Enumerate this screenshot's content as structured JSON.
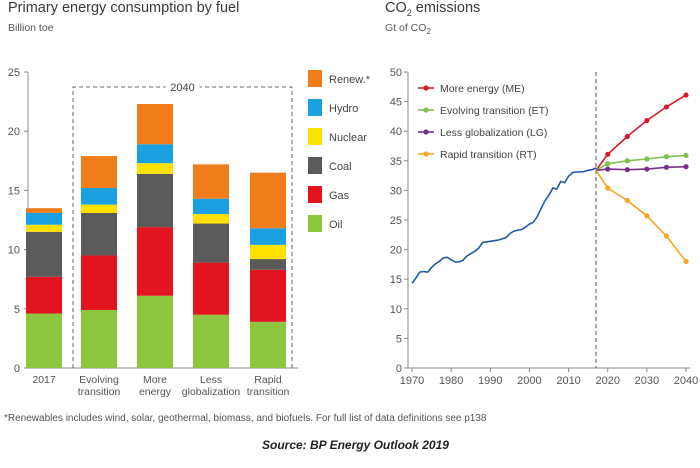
{
  "left_title": "Primary energy consumption by fuel",
  "left_unit": "Billion toe",
  "right_title_main": "CO",
  "right_title_sub": "2",
  "right_title_rest": " emissions",
  "right_unit_main": "Gt of CO",
  "right_unit_sub": "2",
  "footnote": "*Renewables includes wind, solar, geothermal, biomass, and biofuels. For full list of data definitions see p138",
  "source": "Source: BP Energy Outlook 2019",
  "chart_data": [
    {
      "type": "bar",
      "stacked": true,
      "categories": [
        [
          "2017"
        ],
        [
          "Evolving",
          "transition"
        ],
        [
          "More",
          "energy"
        ],
        [
          "Less",
          "globalization"
        ],
        [
          "Rapid",
          "transition"
        ]
      ],
      "bracket_label": "2040",
      "ylim": [
        0,
        25
      ],
      "yticks": [
        0,
        5,
        10,
        15,
        20,
        25
      ],
      "grid": false,
      "legend_position": "right",
      "series": [
        {
          "name": "Oil",
          "color": "#8cc63f",
          "values": [
            4.6,
            4.9,
            6.1,
            4.5,
            3.9
          ]
        },
        {
          "name": "Gas",
          "color": "#e2141d",
          "values": [
            3.1,
            4.6,
            5.8,
            4.4,
            4.4
          ]
        },
        {
          "name": "Coal",
          "color": "#5a5a5a",
          "values": [
            3.8,
            3.6,
            4.5,
            3.3,
            0.9
          ]
        },
        {
          "name": "Nuclear",
          "color": "#ffe100",
          "values": [
            0.6,
            0.7,
            0.9,
            0.8,
            1.2
          ]
        },
        {
          "name": "Hydro",
          "color": "#1ba1e2",
          "values": [
            1.0,
            1.4,
            1.6,
            1.3,
            1.4
          ]
        },
        {
          "name": "Renew.*",
          "color": "#f07d1a",
          "values": [
            0.4,
            2.7,
            3.4,
            2.9,
            4.7
          ]
        }
      ]
    },
    {
      "type": "line",
      "xlim": [
        1970,
        2040
      ],
      "xticks": [
        1970,
        1980,
        1990,
        2000,
        2010,
        2020,
        2030,
        2040
      ],
      "ylim": [
        0,
        50
      ],
      "yticks": [
        0,
        5,
        10,
        15,
        20,
        25,
        30,
        35,
        40,
        45,
        50
      ],
      "grid": false,
      "divider_x": 2017,
      "legend_position": "top-left",
      "series": [
        {
          "name": "",
          "color": "#1f5aa6",
          "markers": false,
          "x": [
            1970,
            1971,
            1972,
            1973,
            1974,
            1975,
            1976,
            1977,
            1978,
            1979,
            1980,
            1981,
            1982,
            1983,
            1984,
            1985,
            1986,
            1987,
            1988,
            1989,
            1990,
            1991,
            1992,
            1993,
            1994,
            1995,
            1996,
            1997,
            1998,
            1999,
            2000,
            2001,
            2002,
            2003,
            2004,
            2005,
            2006,
            2007,
            2008,
            2009,
            2010,
            2011,
            2012,
            2013,
            2014,
            2015,
            2016,
            2017
          ],
          "y": [
            14.3,
            15.2,
            16.2,
            16.3,
            16.2,
            17.0,
            17.6,
            18.0,
            18.6,
            18.7,
            18.3,
            17.9,
            17.9,
            18.2,
            18.9,
            19.3,
            19.7,
            20.2,
            21.2,
            21.3,
            21.4,
            21.5,
            21.6,
            21.8,
            22.0,
            22.7,
            23.1,
            23.3,
            23.4,
            23.8,
            24.3,
            24.6,
            25.6,
            27.0,
            28.3,
            29.2,
            30.4,
            30.2,
            31.5,
            31.3,
            32.4,
            33.0,
            33.1,
            33.1,
            33.2,
            33.4,
            33.5,
            33.8
          ]
        },
        {
          "name": "More energy (ME)",
          "color": "#d7192a",
          "markers": true,
          "x": [
            2017,
            2020,
            2025,
            2030,
            2035,
            2040
          ],
          "y": [
            33.4,
            36.1,
            39.1,
            41.8,
            44.1,
            46.1
          ]
        },
        {
          "name": "Evolving transition (ET)",
          "color": "#7ec24a",
          "markers": true,
          "x": [
            2017,
            2020,
            2025,
            2030,
            2035,
            2040
          ],
          "y": [
            33.4,
            34.5,
            35.0,
            35.3,
            35.7,
            35.9
          ]
        },
        {
          "name": "Less globalization (LG)",
          "color": "#7b2d8e",
          "markers": true,
          "x": [
            2017,
            2020,
            2025,
            2030,
            2035,
            2040
          ],
          "y": [
            33.4,
            33.6,
            33.5,
            33.6,
            33.9,
            34.0
          ]
        },
        {
          "name": "Rapid transition (RT)",
          "color": "#f5a623",
          "markers": true,
          "x": [
            2017,
            2020,
            2025,
            2030,
            2035,
            2040
          ],
          "y": [
            33.4,
            30.4,
            28.3,
            25.7,
            22.3,
            18.0
          ]
        }
      ]
    }
  ]
}
